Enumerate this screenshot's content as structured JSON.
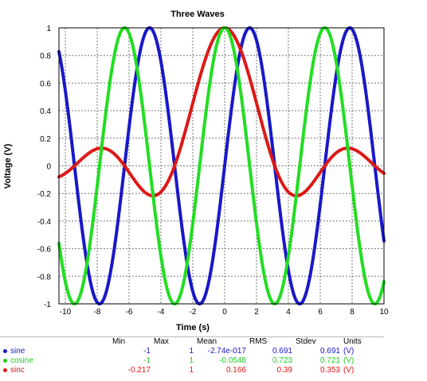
{
  "chart_data": {
    "type": "line",
    "title": "Three Waves",
    "xlabel": "Time (s)",
    "ylabel": "Voltage (V)",
    "xlim": [
      -10.4,
      10
    ],
    "ylim": [
      -1,
      1
    ],
    "xticks": [
      -10,
      -8,
      -6,
      -4,
      -2,
      0,
      2,
      4,
      6,
      8,
      10
    ],
    "yticks": [
      -1,
      -0.8,
      -0.6,
      -0.4,
      -0.2,
      0,
      0.2,
      0.4,
      0.6,
      0.8,
      1
    ],
    "grid": true,
    "series": [
      {
        "name": "sine",
        "color": "#1818c8",
        "function": "sin(t)"
      },
      {
        "name": "cosine",
        "color": "#22dd22",
        "function": "cos(t)"
      },
      {
        "name": "sinc",
        "color": "#dd1818",
        "function": "sin(t)/t"
      }
    ]
  },
  "stats_table": {
    "headers": [
      "",
      "Min",
      "Max",
      "Mean",
      "RMS",
      "Stdev",
      "Units"
    ],
    "rows": [
      {
        "name": "sine",
        "min": "-1",
        "max": "1",
        "mean": "-2.74e-017",
        "rms": "0.691",
        "stdev": "0.691",
        "units": "(V)",
        "color": "#1818c8"
      },
      {
        "name": "cosine",
        "min": "-1",
        "max": "1",
        "mean": "-0.0548",
        "rms": "0.723",
        "stdev": "0.721",
        "units": "(V)",
        "color": "#22cc22"
      },
      {
        "name": "sinc",
        "min": "-0.217",
        "max": "1",
        "mean": "0.166",
        "rms": "0.39",
        "stdev": "0.353",
        "units": "(V)",
        "color": "#dd1818"
      }
    ]
  }
}
